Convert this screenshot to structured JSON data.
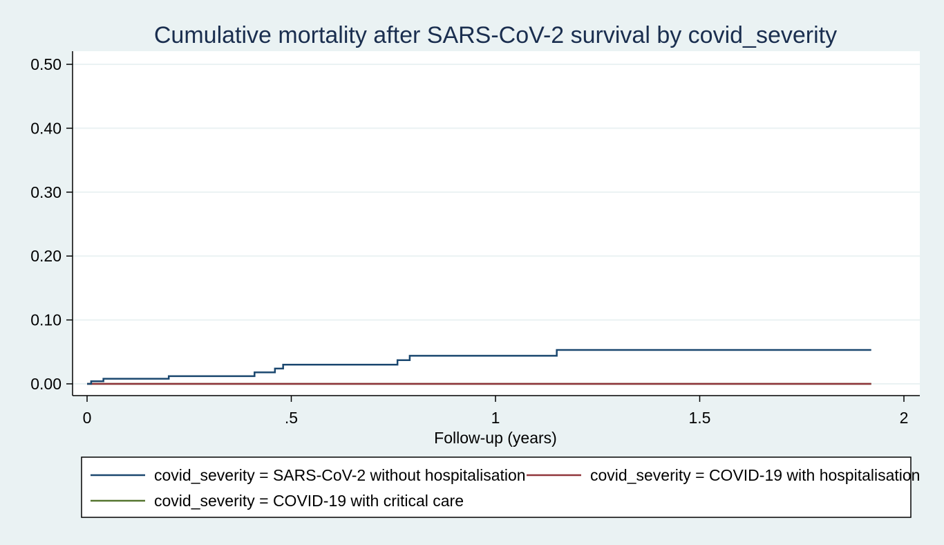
{
  "chart_data": {
    "type": "line",
    "title": "Cumulative mortality after SARS-CoV-2 survival by covid_severity",
    "xlabel": "Follow-up (years)",
    "ylabel": "",
    "xlim": [
      0,
      2
    ],
    "ylim": [
      0,
      0.5
    ],
    "x_ticks": [
      {
        "value": 0,
        "label": "0"
      },
      {
        "value": 0.5,
        "label": ".5"
      },
      {
        "value": 1,
        "label": "1"
      },
      {
        "value": 1.5,
        "label": "1.5"
      },
      {
        "value": 2,
        "label": "2"
      }
    ],
    "y_ticks": [
      {
        "value": 0,
        "label": "0.00"
      },
      {
        "value": 0.1,
        "label": "0.10"
      },
      {
        "value": 0.2,
        "label": "0.20"
      },
      {
        "value": 0.3,
        "label": "0.30"
      },
      {
        "value": 0.4,
        "label": "0.40"
      },
      {
        "value": 0.5,
        "label": "0.50"
      }
    ],
    "grid": "horizontal",
    "legend_position": "bottom",
    "series": [
      {
        "name": "covid_severity = SARS-CoV-2 without hospitalisation",
        "color": "#1a476f",
        "step": true,
        "points": [
          [
            0.0,
            0.0
          ],
          [
            0.01,
            0.004
          ],
          [
            0.04,
            0.008
          ],
          [
            0.2,
            0.012
          ],
          [
            0.41,
            0.018
          ],
          [
            0.46,
            0.024
          ],
          [
            0.48,
            0.03
          ],
          [
            0.76,
            0.037
          ],
          [
            0.79,
            0.044
          ],
          [
            1.15,
            0.053
          ],
          [
            1.92,
            0.053
          ]
        ]
      },
      {
        "name": "covid_severity = COVID-19 with hospitalisation",
        "color": "#90353b",
        "step": true,
        "points": [
          [
            0.0,
            0.0
          ],
          [
            1.92,
            0.0
          ]
        ]
      },
      {
        "name": "covid_severity = COVID-19 with critical care",
        "color": "#55752f",
        "step": true,
        "points": [
          [
            0.0,
            0.0
          ],
          [
            1.92,
            0.0
          ]
        ]
      }
    ]
  }
}
